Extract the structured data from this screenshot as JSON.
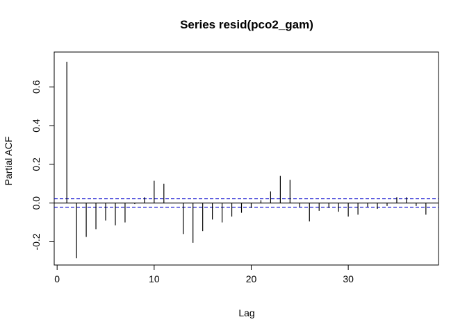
{
  "chart_data": {
    "type": "bar",
    "title": "Series  resid(pco2_gam)",
    "xlabel": "Lag",
    "ylabel": "Partial ACF",
    "xlim": [
      -0.3,
      39.3
    ],
    "ylim": [
      -0.32,
      0.78
    ],
    "xticks": [
      0,
      10,
      20,
      30
    ],
    "yticks": [
      -0.2,
      0.0,
      0.2,
      0.4,
      0.6
    ],
    "ytick_labels": [
      "-0.2",
      "0.0",
      "0.2",
      "0.4",
      "0.6"
    ],
    "xtick_labels": [
      "0",
      "10",
      "20",
      "30"
    ],
    "confidence_band": 0.022,
    "band_color": "#0000cc",
    "lags": [
      1,
      2,
      3,
      4,
      5,
      6,
      7,
      8,
      9,
      10,
      11,
      12,
      13,
      14,
      15,
      16,
      17,
      18,
      19,
      20,
      21,
      22,
      23,
      24,
      25,
      26,
      27,
      28,
      29,
      30,
      31,
      32,
      33,
      34,
      35,
      36,
      37,
      38
    ],
    "values": [
      0.73,
      -0.285,
      -0.175,
      -0.135,
      -0.09,
      -0.115,
      -0.1,
      -0.005,
      0.03,
      0.115,
      0.1,
      0.0,
      -0.16,
      -0.205,
      -0.145,
      -0.085,
      -0.1,
      -0.07,
      -0.05,
      -0.025,
      0.015,
      0.06,
      0.14,
      0.12,
      -0.02,
      -0.095,
      -0.04,
      -0.025,
      -0.045,
      -0.07,
      -0.06,
      -0.02,
      -0.03,
      -0.015,
      0.03,
      0.03,
      -0.015,
      -0.06
    ]
  }
}
